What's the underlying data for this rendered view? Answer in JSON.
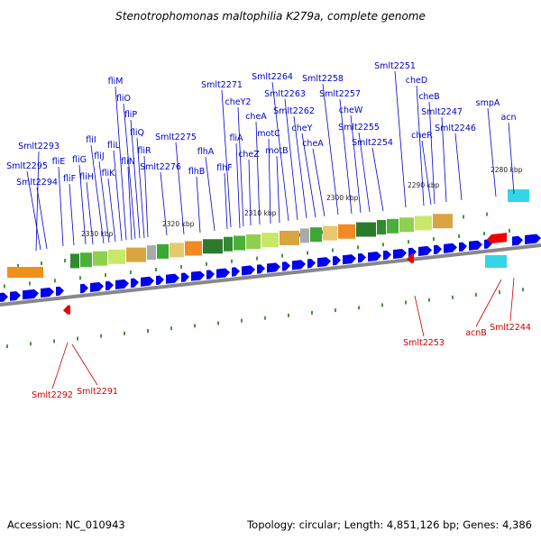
{
  "title": "Stenotrophomonas maltophilia K279a, complete genome",
  "footer": {
    "accession": "Accession: NC_010943",
    "stats": "Topology: circular; Length: 4,851,126 bp; Genes: 4,386"
  },
  "colors": {
    "forward_label": "#0000c8",
    "reverse_label": "#cc0000",
    "forward_gene": "#0000ee",
    "reverse_gene": "#ee0000",
    "backbone": "#888888",
    "tick": "#1a7a1a",
    "cog_green": "#3aa832"
  },
  "scale_ticks": [
    "2330 kbp",
    "2320 kbp",
    "2310 kbp",
    "2300 kbp",
    "2290 kbp",
    "2280 kbp"
  ],
  "forward_genes": [
    "Smlt2293",
    "Smlt2295",
    "Smlt2294",
    "fliE",
    "fliF",
    "fliG",
    "fliH",
    "fliI",
    "fliJ",
    "fliK",
    "fliL",
    "fliM",
    "fliN",
    "fliO",
    "fliP",
    "fliQ",
    "fliR",
    "Smlt2276",
    "Smlt2275",
    "flhB",
    "flhA",
    "flhF",
    "fliA",
    "Smlt2271",
    "cheY2",
    "cheZ",
    "cheA",
    "motC",
    "motB",
    "Smlt2264",
    "Smlt2263",
    "Smlt2262",
    "cheY",
    "cheA",
    "Smlt2258",
    "Smlt2257",
    "cheW",
    "Smlt2255",
    "Smlt2254",
    "Smlt2251",
    "cheD",
    "cheB",
    "cheR",
    "Smlt2247",
    "Smlt2246",
    "smpA",
    "acn"
  ],
  "reverse_genes": [
    "Smlt2292",
    "Smlt2291",
    "Smlt2253",
    "acnB",
    "Smlt2244"
  ]
}
